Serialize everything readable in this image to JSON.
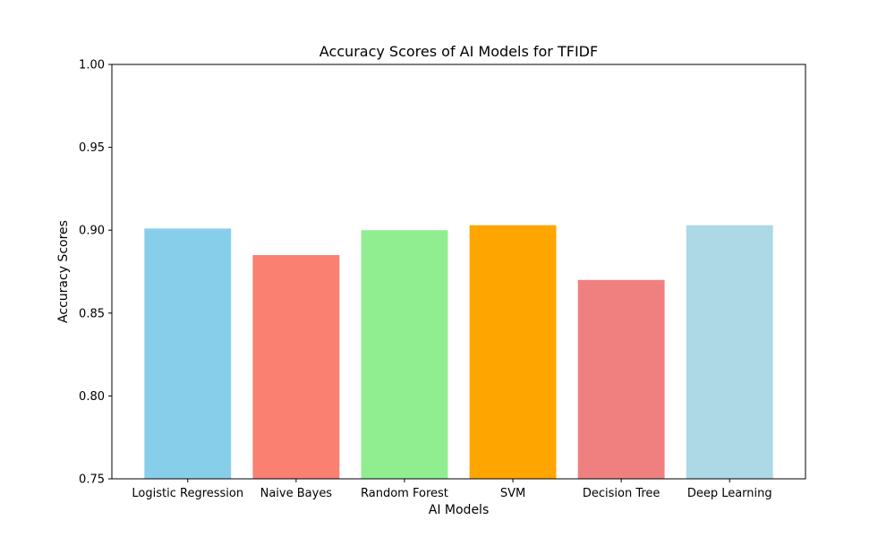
{
  "chart_data": {
    "type": "bar",
    "title": "Accuracy Scores of AI Models for TFIDF",
    "xlabel": "AI Models",
    "ylabel": "Accuracy Scores",
    "categories": [
      "Logistic Regression",
      "Naive Bayes",
      "Random Forest",
      "SVM",
      "Decision Tree",
      "Deep Learning"
    ],
    "values": [
      0.901,
      0.885,
      0.9,
      0.903,
      0.87,
      0.903
    ],
    "colors": [
      "#87ceeb",
      "#fa8072",
      "#90ee90",
      "#ffa500",
      "#f08080",
      "#add8e6"
    ],
    "ylim": [
      0.75,
      1.0
    ],
    "yticks": [
      0.75,
      0.8,
      0.85,
      0.9,
      0.95,
      1.0
    ],
    "ytick_labels": [
      "0.75",
      "0.80",
      "0.85",
      "0.90",
      "0.95",
      "1.00"
    ],
    "grid": false,
    "legend": "none"
  }
}
